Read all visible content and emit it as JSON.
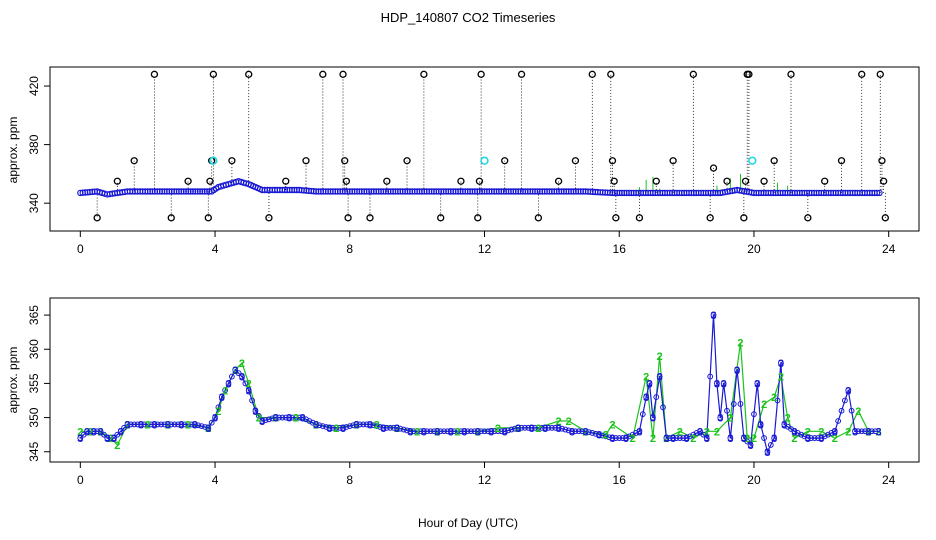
{
  "chart_data": {
    "type": "scatter",
    "title": "HDP_140807  CO2 Timeseries",
    "xlabel": "Hour of Day (UTC)",
    "colors": {
      "black": "#000000",
      "blue": "#1a1ad6",
      "green": "#1bc41b",
      "cyan": "#22d8e6"
    },
    "panels": [
      {
        "id": "top",
        "ylabel": "approx. ppm",
        "xlim": [
          -0.9,
          24.9
        ],
        "ylim": [
          321,
          433
        ],
        "xticks": [
          0,
          4,
          8,
          12,
          16,
          20,
          24
        ],
        "yticks": [
          340,
          380,
          420
        ],
        "xtick_labels": [
          "0",
          "4",
          "8",
          "12",
          "16",
          "20",
          "24"
        ],
        "ytick_labels": [
          "340",
          "380",
          "420"
        ],
        "baseline": [
          [
            0.0,
            347
          ],
          [
            0.5,
            348
          ],
          [
            0.8,
            346
          ],
          [
            1.1,
            347
          ],
          [
            1.4,
            348
          ],
          [
            2.0,
            348
          ],
          [
            3.0,
            348
          ],
          [
            3.9,
            348
          ],
          [
            4.1,
            351
          ],
          [
            4.4,
            353
          ],
          [
            4.7,
            355
          ],
          [
            5.0,
            353
          ],
          [
            5.4,
            349
          ],
          [
            6.0,
            349
          ],
          [
            6.5,
            349
          ],
          [
            7.0,
            348
          ],
          [
            8.0,
            348
          ],
          [
            9.0,
            348
          ],
          [
            10.0,
            348
          ],
          [
            11.0,
            348
          ],
          [
            12.0,
            348
          ],
          [
            13.0,
            348
          ],
          [
            14.0,
            348
          ],
          [
            15.0,
            348
          ],
          [
            15.8,
            347
          ],
          [
            16.5,
            347
          ],
          [
            17.0,
            347
          ],
          [
            18.0,
            347
          ],
          [
            19.0,
            347
          ],
          [
            19.5,
            349
          ],
          [
            20.0,
            347
          ],
          [
            21.0,
            347
          ],
          [
            22.0,
            347
          ],
          [
            23.0,
            347
          ],
          [
            23.8,
            347
          ]
        ],
        "spikes": [
          {
            "x": 0.5,
            "y": 330
          },
          {
            "x": 1.1,
            "y": 355
          },
          {
            "x": 1.6,
            "y": 369
          },
          {
            "x": 2.2,
            "y": 428
          },
          {
            "x": 2.7,
            "y": 330
          },
          {
            "x": 3.2,
            "y": 355
          },
          {
            "x": 3.8,
            "y": 330
          },
          {
            "x": 3.85,
            "y": 355
          },
          {
            "x": 3.9,
            "y": 369
          },
          {
            "x": 3.95,
            "y": 428
          },
          {
            "x": 4.5,
            "y": 369
          },
          {
            "x": 5.0,
            "y": 428
          },
          {
            "x": 5.6,
            "y": 330
          },
          {
            "x": 6.1,
            "y": 355
          },
          {
            "x": 6.7,
            "y": 369
          },
          {
            "x": 7.2,
            "y": 428
          },
          {
            "x": 7.8,
            "y": 428
          },
          {
            "x": 7.85,
            "y": 369
          },
          {
            "x": 7.9,
            "y": 355
          },
          {
            "x": 7.95,
            "y": 330
          },
          {
            "x": 8.6,
            "y": 330
          },
          {
            "x": 9.1,
            "y": 355
          },
          {
            "x": 9.7,
            "y": 369
          },
          {
            "x": 10.2,
            "y": 428
          },
          {
            "x": 10.7,
            "y": 330
          },
          {
            "x": 11.3,
            "y": 355
          },
          {
            "x": 11.8,
            "y": 330
          },
          {
            "x": 11.85,
            "y": 355
          },
          {
            "x": 11.9,
            "y": 428
          },
          {
            "x": 12.6,
            "y": 369
          },
          {
            "x": 13.1,
            "y": 428
          },
          {
            "x": 13.6,
            "y": 330
          },
          {
            "x": 14.2,
            "y": 355
          },
          {
            "x": 14.7,
            "y": 369
          },
          {
            "x": 15.2,
            "y": 428
          },
          {
            "x": 15.75,
            "y": 428
          },
          {
            "x": 15.8,
            "y": 369
          },
          {
            "x": 15.85,
            "y": 355
          },
          {
            "x": 15.9,
            "y": 330
          },
          {
            "x": 16.6,
            "y": 330
          },
          {
            "x": 17.1,
            "y": 355
          },
          {
            "x": 17.6,
            "y": 369
          },
          {
            "x": 18.2,
            "y": 428
          },
          {
            "x": 18.7,
            "y": 330
          },
          {
            "x": 18.8,
            "y": 364
          },
          {
            "x": 19.2,
            "y": 355
          },
          {
            "x": 19.7,
            "y": 330
          },
          {
            "x": 19.75,
            "y": 355
          },
          {
            "x": 19.8,
            "y": 428
          },
          {
            "x": 19.85,
            "y": 428
          },
          {
            "x": 20.3,
            "y": 355
          },
          {
            "x": 20.6,
            "y": 369
          },
          {
            "x": 21.1,
            "y": 428
          },
          {
            "x": 21.6,
            "y": 330
          },
          {
            "x": 22.1,
            "y": 355
          },
          {
            "x": 22.6,
            "y": 369
          },
          {
            "x": 23.2,
            "y": 428
          },
          {
            "x": 23.75,
            "y": 428
          },
          {
            "x": 23.8,
            "y": 369
          },
          {
            "x": 23.85,
            "y": 355
          },
          {
            "x": 23.9,
            "y": 330
          }
        ],
        "cyan_points": [
          [
            3.95,
            369
          ],
          [
            12.0,
            369
          ],
          [
            19.95,
            369
          ]
        ],
        "green_noise": [
          [
            16.6,
            351
          ],
          [
            16.8,
            356
          ],
          [
            17.0,
            358
          ],
          [
            17.2,
            350
          ],
          [
            18.9,
            352
          ],
          [
            19.3,
            357
          ],
          [
            19.6,
            360
          ],
          [
            20.7,
            354
          ],
          [
            21.0,
            352
          ]
        ]
      },
      {
        "id": "bottom",
        "ylabel": "approx. ppm",
        "xlim": [
          -0.9,
          24.9
        ],
        "ylim": [
          343.5,
          367.5
        ],
        "xticks": [
          0,
          4,
          8,
          12,
          16,
          20,
          24
        ],
        "yticks": [
          345,
          350,
          355,
          360,
          365
        ],
        "xtick_labels": [
          "0",
          "4",
          "8",
          "12",
          "16",
          "20",
          "24"
        ],
        "ytick_labels": [
          "345",
          "350",
          "355",
          "360",
          "365"
        ],
        "series3": [
          [
            0.0,
            347
          ],
          [
            0.2,
            348
          ],
          [
            0.4,
            348
          ],
          [
            0.6,
            348
          ],
          [
            0.8,
            347
          ],
          [
            1.0,
            347
          ],
          [
            1.2,
            348
          ],
          [
            1.4,
            349
          ],
          [
            1.8,
            349
          ],
          [
            2.2,
            349
          ],
          [
            2.6,
            349
          ],
          [
            3.0,
            349
          ],
          [
            3.4,
            349
          ],
          [
            3.8,
            348.5
          ],
          [
            4.0,
            350
          ],
          [
            4.2,
            353
          ],
          [
            4.4,
            355
          ],
          [
            4.6,
            357
          ],
          [
            4.8,
            356
          ],
          [
            5.0,
            354
          ],
          [
            5.2,
            351
          ],
          [
            5.4,
            349.5
          ],
          [
            5.8,
            350
          ],
          [
            6.2,
            350
          ],
          [
            6.6,
            350
          ],
          [
            7.0,
            349
          ],
          [
            7.4,
            348.5
          ],
          [
            7.8,
            348.5
          ],
          [
            8.2,
            349
          ],
          [
            8.6,
            349
          ],
          [
            9.0,
            348.5
          ],
          [
            9.4,
            348.5
          ],
          [
            9.8,
            348
          ],
          [
            10.2,
            348
          ],
          [
            10.6,
            348
          ],
          [
            11.0,
            348
          ],
          [
            11.4,
            348
          ],
          [
            11.8,
            348
          ],
          [
            12.2,
            348
          ],
          [
            12.6,
            348
          ],
          [
            13.0,
            348.5
          ],
          [
            13.4,
            348.5
          ],
          [
            13.8,
            348.5
          ],
          [
            14.2,
            348.5
          ],
          [
            14.6,
            348
          ],
          [
            15.0,
            348
          ],
          [
            15.4,
            347.5
          ],
          [
            15.8,
            347
          ],
          [
            16.2,
            347
          ],
          [
            16.6,
            348
          ],
          [
            16.8,
            353
          ],
          [
            16.9,
            355
          ],
          [
            17.0,
            350
          ],
          [
            17.2,
            356
          ],
          [
            17.4,
            347
          ],
          [
            17.6,
            347
          ],
          [
            18.0,
            347
          ],
          [
            18.4,
            348
          ],
          [
            18.6,
            347
          ],
          [
            18.8,
            365
          ],
          [
            18.9,
            355
          ],
          [
            19.0,
            350
          ],
          [
            19.1,
            355
          ],
          [
            19.3,
            347
          ],
          [
            19.5,
            357
          ],
          [
            19.7,
            347
          ],
          [
            19.9,
            346
          ],
          [
            20.1,
            355
          ],
          [
            20.2,
            349
          ],
          [
            20.4,
            345
          ],
          [
            20.6,
            347
          ],
          [
            20.8,
            358
          ],
          [
            20.9,
            349
          ],
          [
            21.2,
            348
          ],
          [
            21.6,
            347
          ],
          [
            22.0,
            347
          ],
          [
            22.4,
            348
          ],
          [
            22.8,
            354
          ],
          [
            23.0,
            348
          ],
          [
            23.4,
            348
          ],
          [
            23.7,
            348
          ]
        ],
        "series2": [
          [
            0.0,
            348
          ],
          [
            0.3,
            348
          ],
          [
            0.6,
            348
          ],
          [
            0.9,
            347
          ],
          [
            1.1,
            346
          ],
          [
            1.4,
            349
          ],
          [
            2.0,
            349
          ],
          [
            2.6,
            349
          ],
          [
            3.2,
            349
          ],
          [
            3.8,
            348.5
          ],
          [
            4.1,
            351
          ],
          [
            4.3,
            354
          ],
          [
            4.6,
            357
          ],
          [
            4.8,
            358
          ],
          [
            5.0,
            355
          ],
          [
            5.3,
            350
          ],
          [
            5.8,
            350
          ],
          [
            6.4,
            350
          ],
          [
            7.0,
            349
          ],
          [
            7.6,
            348.5
          ],
          [
            8.2,
            349
          ],
          [
            8.8,
            349
          ],
          [
            9.4,
            348.5
          ],
          [
            10.0,
            348
          ],
          [
            10.6,
            348
          ],
          [
            11.2,
            348
          ],
          [
            11.8,
            348
          ],
          [
            12.4,
            348.5
          ],
          [
            13.0,
            348.5
          ],
          [
            13.6,
            348.5
          ],
          [
            14.2,
            349.5
          ],
          [
            14.5,
            349.5
          ],
          [
            15.0,
            348
          ],
          [
            15.6,
            347.5
          ],
          [
            15.8,
            349
          ],
          [
            16.4,
            347
          ],
          [
            16.8,
            356
          ],
          [
            17.0,
            347
          ],
          [
            17.2,
            359
          ],
          [
            17.4,
            347
          ],
          [
            17.8,
            348
          ],
          [
            18.2,
            347
          ],
          [
            18.6,
            348
          ],
          [
            18.9,
            348
          ],
          [
            19.3,
            350
          ],
          [
            19.6,
            361
          ],
          [
            19.8,
            347
          ],
          [
            20.0,
            347
          ],
          [
            20.3,
            352
          ],
          [
            20.6,
            353
          ],
          [
            20.8,
            356
          ],
          [
            21.0,
            350
          ],
          [
            21.2,
            347
          ],
          [
            21.6,
            348
          ],
          [
            22.0,
            348
          ],
          [
            22.4,
            347
          ],
          [
            22.8,
            348
          ],
          [
            23.1,
            351
          ],
          [
            23.4,
            348
          ],
          [
            23.7,
            348
          ]
        ]
      }
    ]
  }
}
